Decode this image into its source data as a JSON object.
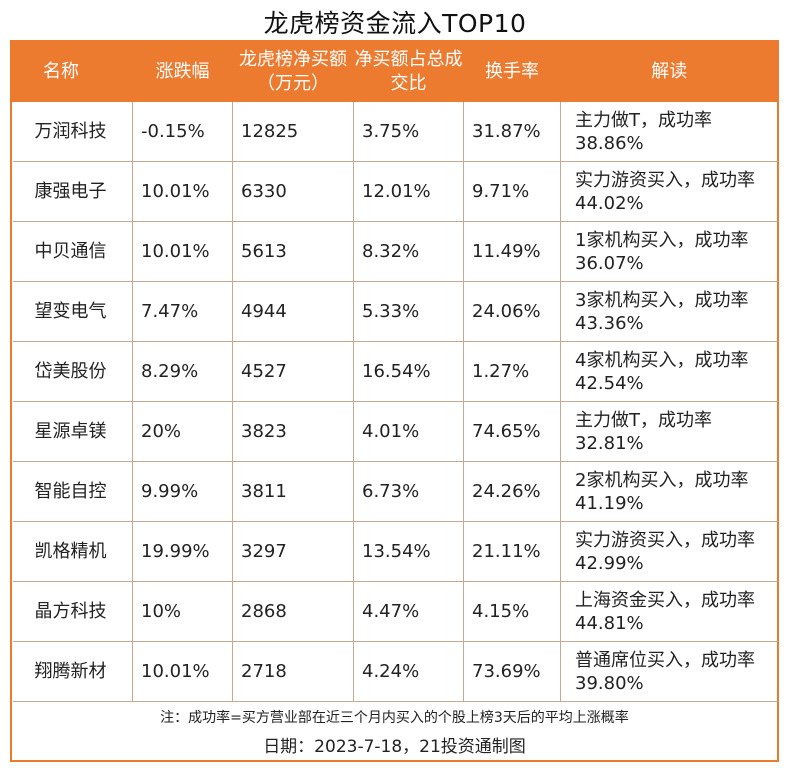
{
  "title": "龙虎榜资金流入TOP10",
  "headers": {
    "name": "名称",
    "change": "涨跌幅",
    "net_buy": "龙虎榜净买额（万元）",
    "ratio": "净买额占总成交比",
    "turnover": "换手率",
    "comment": "解读"
  },
  "rows": [
    {
      "name": "万润科技",
      "change": "-0.15%",
      "net_buy": "12825",
      "ratio": "3.75%",
      "turnover": "31.87%",
      "comment": "主力做T，成功率38.86%"
    },
    {
      "name": "康强电子",
      "change": "10.01%",
      "net_buy": "6330",
      "ratio": "12.01%",
      "turnover": "9.71%",
      "comment": "实力游资买入，成功率44.02%"
    },
    {
      "name": "中贝通信",
      "change": "10.01%",
      "net_buy": "5613",
      "ratio": "8.32%",
      "turnover": "11.49%",
      "comment": "1家机构买入，成功率36.07%"
    },
    {
      "name": "望变电气",
      "change": "7.47%",
      "net_buy": "4944",
      "ratio": "5.33%",
      "turnover": "24.06%",
      "comment": "3家机构买入，成功率43.36%"
    },
    {
      "name": "岱美股份",
      "change": "8.29%",
      "net_buy": "4527",
      "ratio": "16.54%",
      "turnover": "1.27%",
      "comment": "4家机构买入，成功率42.54%"
    },
    {
      "name": "星源卓镁",
      "change": "20%",
      "net_buy": "3823",
      "ratio": "4.01%",
      "turnover": "74.65%",
      "comment": "主力做T，成功率32.81%"
    },
    {
      "name": "智能自控",
      "change": "9.99%",
      "net_buy": "3811",
      "ratio": "6.73%",
      "turnover": "24.26%",
      "comment": "2家机构买入，成功率41.19%"
    },
    {
      "name": "凯格精机",
      "change": "19.99%",
      "net_buy": "3297",
      "ratio": "13.54%",
      "turnover": "21.11%",
      "comment": "实力游资买入，成功率42.99%"
    },
    {
      "name": "晶方科技",
      "change": "10%",
      "net_buy": "2868",
      "ratio": "4.47%",
      "turnover": "4.15%",
      "comment": "上海资金买入，成功率44.81%"
    },
    {
      "name": "翔腾新材",
      "change": "10.01%",
      "net_buy": "2718",
      "ratio": "4.24%",
      "turnover": "73.69%",
      "comment": "普通席位买入，成功率39.80%"
    }
  ],
  "note": "注：成功率=买方营业部在近三个月内买入的个股上榜3天后的平均上涨概率",
  "credit": "日期：2023-7-18，21投资通制图",
  "colors": {
    "accent": "#ec7a2f"
  }
}
